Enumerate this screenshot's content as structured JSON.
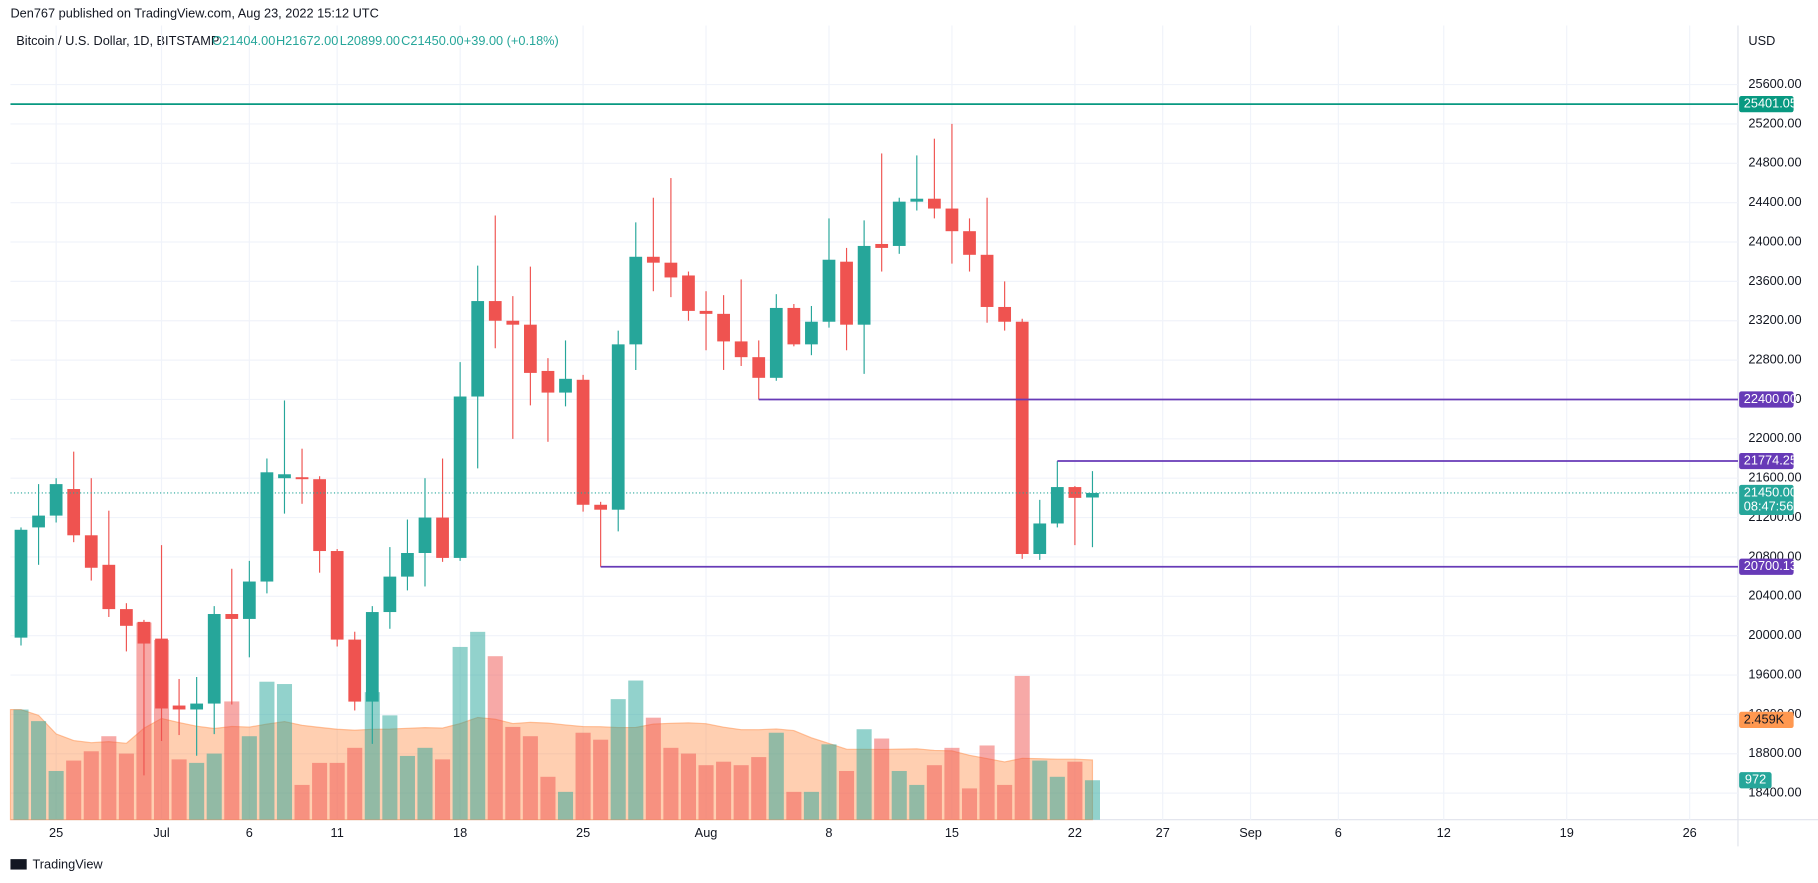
{
  "header": {
    "publisher": "Den767 published on TradingView.com, Aug 23, 2022 15:12 UTC",
    "brand": "TradingView"
  },
  "chart_data": {
    "type": "candlestick",
    "title": "Bitcoin / U.S. Dollar, 1D, BITSTAMP",
    "ohlc_labels": [
      "O21404.00",
      "H21672.00",
      "L20899.00",
      "C21450.00",
      "+39.00 (+0.18%)"
    ],
    "currency": "USD",
    "up_color": "#26a69a",
    "down_color": "#ef5350",
    "categories": [
      null,
      null,
      "25",
      null,
      null,
      null,
      null,
      null,
      "Jul",
      null,
      null,
      null,
      null,
      "6",
      null,
      null,
      null,
      null,
      "11",
      null,
      null,
      null,
      null,
      null,
      null,
      "18",
      null,
      null,
      null,
      null,
      null,
      null,
      "25",
      null,
      null,
      null,
      null,
      null,
      null,
      "Aug",
      null,
      null,
      null,
      null,
      null,
      null,
      "8",
      null,
      null,
      null,
      null,
      null,
      null,
      "15",
      null,
      null,
      null,
      null,
      null,
      null,
      "22",
      null,
      null,
      null,
      null,
      "27",
      null,
      null,
      null,
      null,
      "Sep",
      null,
      null,
      null,
      null,
      "6",
      null,
      null,
      null,
      null,
      null,
      "12",
      null,
      null,
      null,
      null,
      null,
      null,
      "19",
      null,
      null,
      null,
      null,
      null,
      null,
      "26",
      null,
      null
    ],
    "open": [
      19980,
      21100,
      21220,
      21490,
      21020,
      20720,
      20270,
      20140,
      19970,
      19290,
      19250,
      19310,
      20220,
      20170,
      20550,
      21600,
      21610,
      21590,
      20860,
      19960,
      19330,
      20240,
      20600,
      20840,
      21200,
      20790,
      22430,
      23400,
      23200,
      23160,
      22690,
      22470,
      22600,
      21330,
      21280,
      22960,
      23850,
      23790,
      23660,
      23300,
      23270,
      22990,
      22830,
      22620,
      23330,
      22960,
      23190,
      23800,
      23160,
      23980,
      23960,
      24410,
      24440,
      24340,
      24110,
      23870,
      23340,
      23190,
      20830,
      21140,
      21510,
      21404,
      null,
      null,
      null,
      null,
      null,
      null,
      null,
      null,
      null,
      null,
      null,
      null,
      null,
      null,
      null,
      null,
      null,
      null,
      null,
      null,
      null,
      null,
      null,
      null,
      null,
      null,
      null,
      null,
      null,
      null,
      null,
      null,
      null,
      null,
      null,
      null
    ],
    "high": [
      21100,
      21540,
      21600,
      21870,
      21600,
      21270,
      20330,
      20160,
      20920,
      19560,
      19580,
      20300,
      20680,
      20760,
      21800,
      22390,
      21900,
      21620,
      20880,
      20040,
      20300,
      20900,
      21180,
      21600,
      21800,
      22780,
      23760,
      24270,
      23450,
      23750,
      22820,
      23000,
      22650,
      21360,
      23100,
      24200,
      24450,
      24650,
      23700,
      23500,
      23460,
      23620,
      23000,
      23470,
      23370,
      23350,
      24240,
      23940,
      24220,
      24900,
      24450,
      24880,
      25050,
      25200,
      24240,
      24450,
      23600,
      23220,
      21380,
      21774,
      21520,
      21672,
      null,
      null,
      null,
      null,
      null,
      null,
      null,
      null,
      null,
      null,
      null,
      null,
      null,
      null,
      null,
      null,
      null,
      null,
      null,
      null,
      null,
      null,
      null,
      null,
      null,
      null,
      null,
      null,
      null,
      null,
      null,
      null,
      null,
      null,
      null,
      null
    ],
    "low": [
      19900,
      20720,
      21150,
      20950,
      20560,
      20190,
      19840,
      18580,
      18930,
      18990,
      18780,
      19000,
      19300,
      19780,
      20430,
      21240,
      21340,
      20640,
      19890,
      19240,
      18900,
      20070,
      20460,
      20500,
      20750,
      20760,
      21700,
      22920,
      22000,
      22340,
      21970,
      22330,
      21260,
      20700,
      21060,
      22700,
      23500,
      23440,
      23200,
      22900,
      22700,
      22740,
      22400,
      22590,
      22940,
      22850,
      23130,
      22900,
      22660,
      23700,
      23880,
      24320,
      24240,
      23780,
      23700,
      23180,
      23100,
      20780,
      20770,
      21100,
      20920,
      20899,
      null,
      null,
      null,
      null,
      null,
      null,
      null,
      null,
      null,
      null,
      null,
      null,
      null,
      null,
      null,
      null,
      null,
      null,
      null,
      null,
      null,
      null,
      null,
      null,
      null,
      null,
      null,
      null,
      null,
      null,
      null,
      null,
      null,
      null,
      null,
      null
    ],
    "close": [
      21076,
      21220,
      21540,
      21020,
      20690,
      20270,
      20100,
      19920,
      19260,
      19250,
      19310,
      20220,
      20170,
      20550,
      21660,
      21640,
      21590,
      20860,
      19960,
      19330,
      20240,
      20600,
      20840,
      21200,
      20790,
      22430,
      23400,
      23200,
      23160,
      22670,
      22470,
      22610,
      21330,
      21280,
      22960,
      23850,
      23790,
      23640,
      23300,
      23270,
      22990,
      22830,
      22620,
      23330,
      22960,
      23190,
      23820,
      23160,
      23960,
      23940,
      24410,
      24440,
      24340,
      24110,
      23870,
      23340,
      23190,
      20830,
      21140,
      21510,
      21400,
      21450,
      null,
      null,
      null,
      null,
      null,
      null,
      null,
      null,
      null,
      null,
      null,
      null,
      null,
      null,
      null,
      null,
      null,
      null,
      null,
      null,
      null,
      null,
      null,
      null,
      null,
      null,
      null,
      null,
      null,
      null,
      null,
      null,
      null,
      null,
      null,
      null
    ],
    "volume": [
      2714,
      2429,
      1200,
      1457,
      1686,
      2057,
      1629,
      4857,
      4429,
      1486,
      1400,
      1629,
      2914,
      2057,
      3400,
      3343,
      857,
      1400,
      1400,
      1771,
      3143,
      2571,
      1571,
      1771,
      1486,
      4257,
      4629,
      4029,
      2286,
      2057,
      1057,
      686,
      2143,
      1971,
      2971,
      3429,
      2514,
      1771,
      1629,
      1343,
      1429,
      1343,
      1543,
      2143,
      686,
      686,
      1857,
      1200,
      2229,
      2000,
      1200,
      857,
      1343,
      1771,
      771,
      1829,
      857,
      3543,
      1457,
      1057,
      1429,
      972,
      null,
      null,
      null,
      null,
      null,
      null,
      null,
      null,
      null,
      null,
      null,
      null,
      null,
      null,
      null,
      null,
      null,
      null,
      null,
      null,
      null,
      null,
      null,
      null,
      null,
      null,
      null,
      null,
      null,
      null,
      null,
      null,
      null,
      null,
      null,
      null
    ],
    "volume_ylim": [
      0,
      19570
    ],
    "volume_ma": {
      "value": 2459,
      "label": "2.459K"
    },
    "last_volume_label": "972",
    "ylim": [
      18130,
      26200
    ],
    "yticks": [
      {
        "value": 18400,
        "label": "18400.00"
      },
      {
        "value": 18800,
        "label": "18800.00"
      },
      {
        "value": 19200,
        "label": "19200.00"
      },
      {
        "value": 19600,
        "label": "19600.00"
      },
      {
        "value": 20000,
        "label": "20000.00"
      },
      {
        "value": 20400,
        "label": "20400.00"
      },
      {
        "value": 20800,
        "label": "20800.00"
      },
      {
        "value": 21200,
        "label": "21200.00"
      },
      {
        "value": 21600,
        "label": "21600.00"
      },
      {
        "value": 22000,
        "label": "22000.00"
      },
      {
        "value": 22400,
        "label": "22400.00"
      },
      {
        "value": 22800,
        "label": "22800.00"
      },
      {
        "value": 23200,
        "label": "23200.00"
      },
      {
        "value": 23600,
        "label": "23600.00"
      },
      {
        "value": 24000,
        "label": "24000.00"
      },
      {
        "value": 24400,
        "label": "24400.00"
      },
      {
        "value": 24800,
        "label": "24800.00"
      },
      {
        "value": 25200,
        "label": "25200.00"
      },
      {
        "value": 25600,
        "label": "25600.00"
      }
    ],
    "last_price": {
      "value": 21450,
      "label": "21450.00"
    },
    "countdown": "08:47:56",
    "levels": [
      {
        "value": 25401.05,
        "label": "25401.05",
        "color": "#089981"
      },
      {
        "value": 22400,
        "label": "22400.00",
        "color": "#673ab7"
      },
      {
        "value": 21774.25,
        "label": "21774.25",
        "color": "#673ab7"
      },
      {
        "value": 20700.13,
        "label": "20700.13",
        "color": "#673ab7"
      }
    ],
    "grid": true
  }
}
